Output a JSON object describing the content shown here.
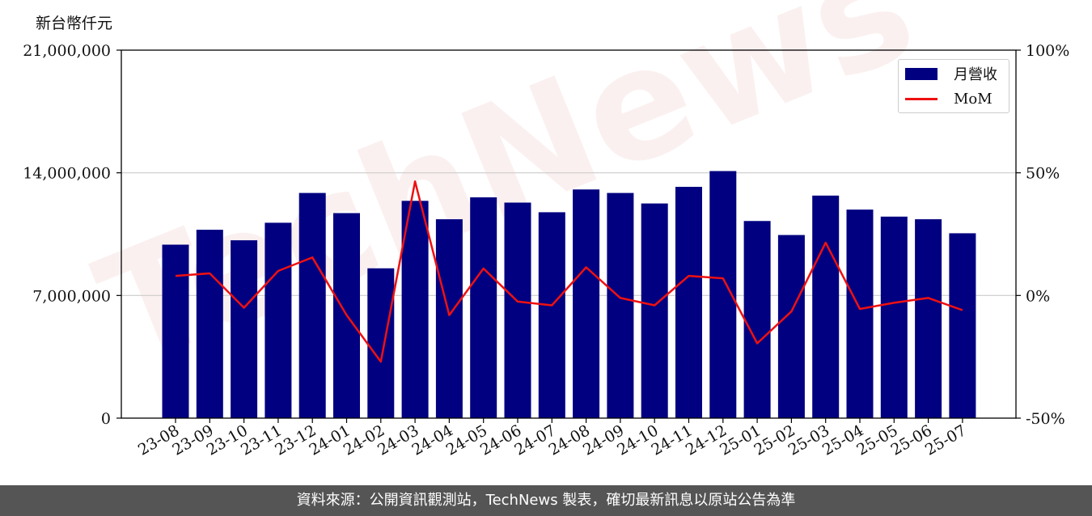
{
  "unit_label": "新台幣仟元",
  "footer_text": "資料來源：公開資訊觀測站，TechNews 製表，確切最新訊息以原站公告為準",
  "watermark_text": "TechNews",
  "colors": {
    "bar": "#000080",
    "line": "#ee1111",
    "grid": "#cccccc",
    "footer_bg": "#555555"
  },
  "chart_data": {
    "type": "bar",
    "categories": [
      "23-08",
      "23-09",
      "23-10",
      "23-11",
      "23-12",
      "24-01",
      "24-02",
      "24-03",
      "24-04",
      "24-05",
      "24-06",
      "24-07",
      "24-08",
      "24-09",
      "24-10",
      "24-11",
      "24-12",
      "25-01",
      "25-02",
      "25-03",
      "25-04",
      "25-05",
      "25-06",
      "25-07"
    ],
    "series": [
      {
        "name": "月營收",
        "type": "bar",
        "axis": "left",
        "values": [
          9900000,
          10750000,
          10150000,
          11150000,
          12850000,
          11700000,
          8550000,
          12400000,
          11350000,
          12600000,
          12300000,
          11750000,
          13050000,
          12850000,
          12250000,
          13200000,
          14100000,
          11250000,
          10450000,
          12700000,
          11900000,
          11500000,
          11350000,
          10550000
        ]
      },
      {
        "name": "MoM",
        "type": "line",
        "axis": "right",
        "values": [
          8,
          9,
          -5,
          10,
          15.5,
          -8,
          -27,
          46.5,
          -8,
          11,
          -2.5,
          -4,
          11.5,
          -1,
          -4,
          8,
          7,
          -19.5,
          -6.5,
          21.5,
          -5.5,
          -3,
          -1,
          -6
        ]
      }
    ],
    "left_axis": {
      "ylim": [
        0,
        21000000
      ],
      "ticks": [
        0,
        7000000,
        14000000,
        21000000
      ],
      "tick_labels": [
        "0",
        "7,000,000",
        "14,000,000",
        "21,000,000"
      ]
    },
    "right_axis": {
      "ylim": [
        -50,
        100
      ],
      "ticks": [
        -50,
        0,
        50,
        100
      ],
      "tick_labels": [
        "-50%",
        "0%",
        "50%",
        "100%"
      ]
    },
    "grid": "horizontal",
    "legend_position": "top-right"
  }
}
